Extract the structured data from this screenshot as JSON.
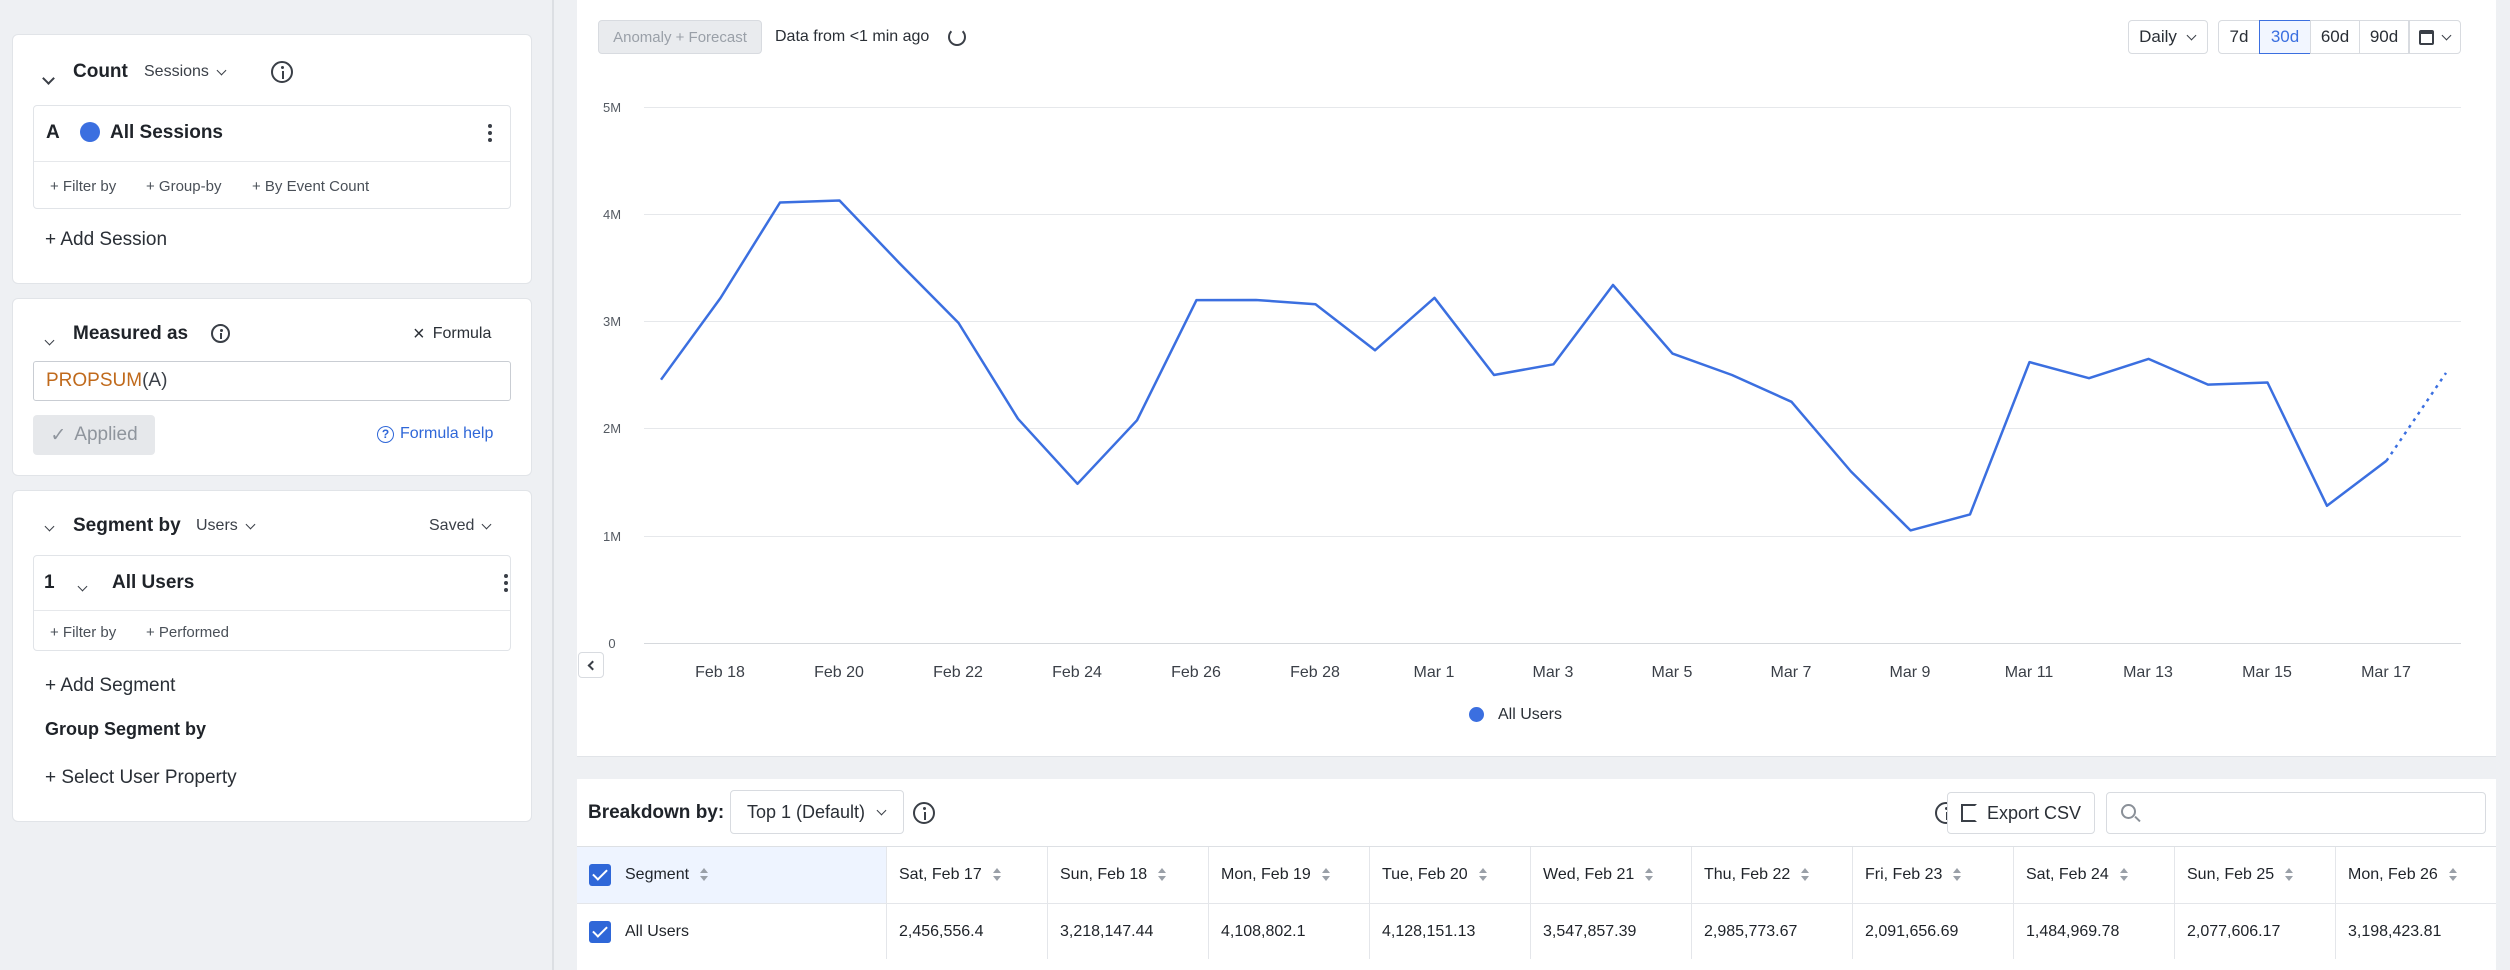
{
  "query": {
    "count_label": "Count",
    "count_type": "Sessions",
    "event": {
      "letter": "A",
      "name": "All Sessions",
      "actions": [
        "+ Filter by",
        "+ Group-by",
        "+ By Event Count"
      ]
    },
    "add_session": "+ Add Session"
  },
  "measured": {
    "title": "Measured as",
    "formula_toggle": "Formula",
    "formula_fn": "PROPSUM",
    "formula_arg": "(A)",
    "applied_label": "Applied",
    "help_label": "Formula help"
  },
  "segment": {
    "title": "Segment by",
    "type": "Users",
    "saved_label": "Saved",
    "item_index": "1",
    "item_name": "All Users",
    "actions": [
      "+ Filter by",
      "+ Performed"
    ],
    "add_segment": "+ Add Segment",
    "group_title": "Group Segment by",
    "select_property": "+ Select User Property"
  },
  "toolbar": {
    "anomaly_label": "Anomaly + Forecast",
    "data_status": "Data from <1 min ago",
    "interval": "Daily",
    "ranges": [
      "7d",
      "30d",
      "60d",
      "90d"
    ],
    "active_range": "30d"
  },
  "chart_data": {
    "type": "line",
    "y_ticks": [
      "0",
      "1M",
      "2M",
      "3M",
      "4M",
      "5M"
    ],
    "ylim": [
      0,
      5000000
    ],
    "x_tick_labels": [
      "Feb 18",
      "Feb 20",
      "Feb 22",
      "Feb 24",
      "Feb 26",
      "Feb 28",
      "Mar 1",
      "Mar 3",
      "Mar 5",
      "Mar 7",
      "Mar 9",
      "Mar 11",
      "Mar 13",
      "Mar 15",
      "Mar 17"
    ],
    "series": [
      {
        "name": "All Users",
        "color": "#3b6fe0",
        "values": [
          2456556.4,
          3218147.44,
          4108802.1,
          4128151.13,
          3547857.39,
          2985773.67,
          2091656.69,
          1484969.78,
          2077606.17,
          3198423.81,
          3200000,
          3160000,
          2730000,
          3220000,
          2500000,
          2600000,
          3340000,
          2700000,
          2500000,
          2250000,
          1600000,
          1050000,
          1200000,
          2620000,
          2470000,
          2650000,
          2410000,
          2430000,
          1280000,
          1700000
        ],
        "forecast": [
          1700000,
          2520000
        ]
      }
    ],
    "legend_position": "bottom-center",
    "grid": true
  },
  "breakdown": {
    "label": "Breakdown by:",
    "selection": "Top 1 (Default)",
    "export_label": "Export CSV",
    "search_placeholder": ""
  },
  "table": {
    "segment_header": "Segment",
    "columns": [
      "Sat, Feb 17",
      "Sun, Feb 18",
      "Mon, Feb 19",
      "Tue, Feb 20",
      "Wed, Feb 21",
      "Thu, Feb 22",
      "Fri, Feb 23",
      "Sat, Feb 24",
      "Sun, Feb 25",
      "Mon, Feb 26"
    ],
    "rows": [
      {
        "segment": "All Users",
        "values": [
          "2,456,556.4",
          "3,218,147.44",
          "4,108,802.1",
          "4,128,151.13",
          "3,547,857.39",
          "2,985,773.67",
          "2,091,656.69",
          "1,484,969.78",
          "2,077,606.17",
          "3,198,423.81"
        ]
      }
    ]
  }
}
